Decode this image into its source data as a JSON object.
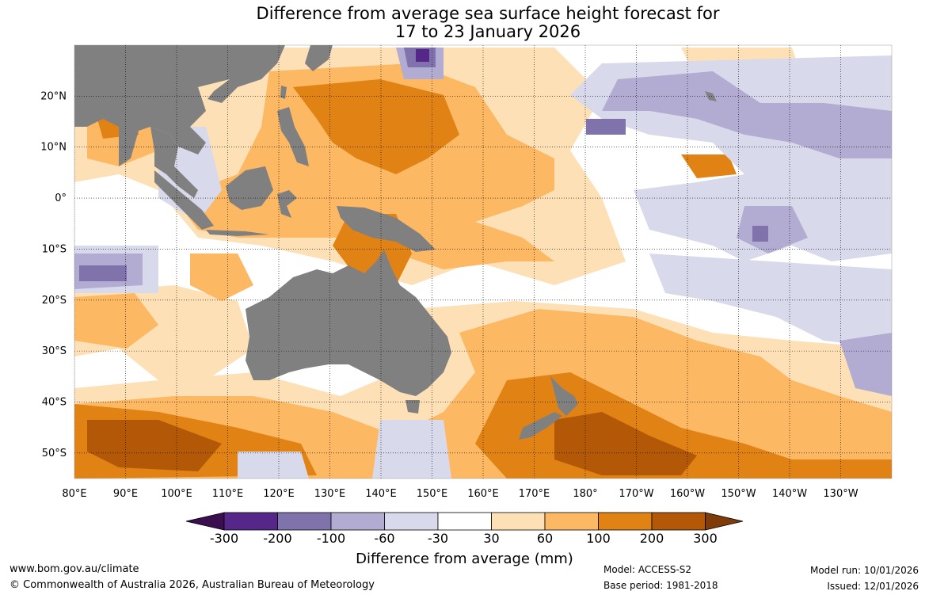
{
  "title": {
    "line1": "Difference from average sea surface height forecast for",
    "line2": "17 to 23 January 2026"
  },
  "map": {
    "lon_labels": [
      "80°E",
      "90°E",
      "100°E",
      "110°E",
      "120°E",
      "130°E",
      "140°E",
      "150°E",
      "160°E",
      "170°E",
      "180°",
      "170°W",
      "160°W",
      "150°W",
      "140°W",
      "130°W"
    ],
    "lat_labels": [
      "20°N",
      "10°N",
      "0°",
      "10°S",
      "20°S",
      "30°S",
      "40°S",
      "50°S"
    ],
    "lon_range": [
      80,
      240
    ],
    "lat_range": [
      -55,
      30
    ],
    "land_color": "#808080"
  },
  "colorbar": {
    "colors": [
      "#3b0f4f",
      "#542788",
      "#8073ac",
      "#b2abd2",
      "#d8daeb",
      "#ffffff",
      "#fee0b6",
      "#fdb863",
      "#e08214",
      "#b35806",
      "#7f3b08"
    ],
    "labels": [
      "-300",
      "-200",
      "-100",
      "-60",
      "-30",
      "30",
      "60",
      "100",
      "200",
      "300"
    ],
    "title": "Difference from average (mm)"
  },
  "footer": {
    "website": "www.bom.gov.au/climate",
    "copyright": "© Commonwealth of Australia 2026, Australian Bureau of Meteorology",
    "model": "Model: ACCESS-S2",
    "base_period": "Base period: 1981-2018",
    "model_run": "Model run: 10/01/2026",
    "issued": "Issued: 12/01/2026"
  }
}
